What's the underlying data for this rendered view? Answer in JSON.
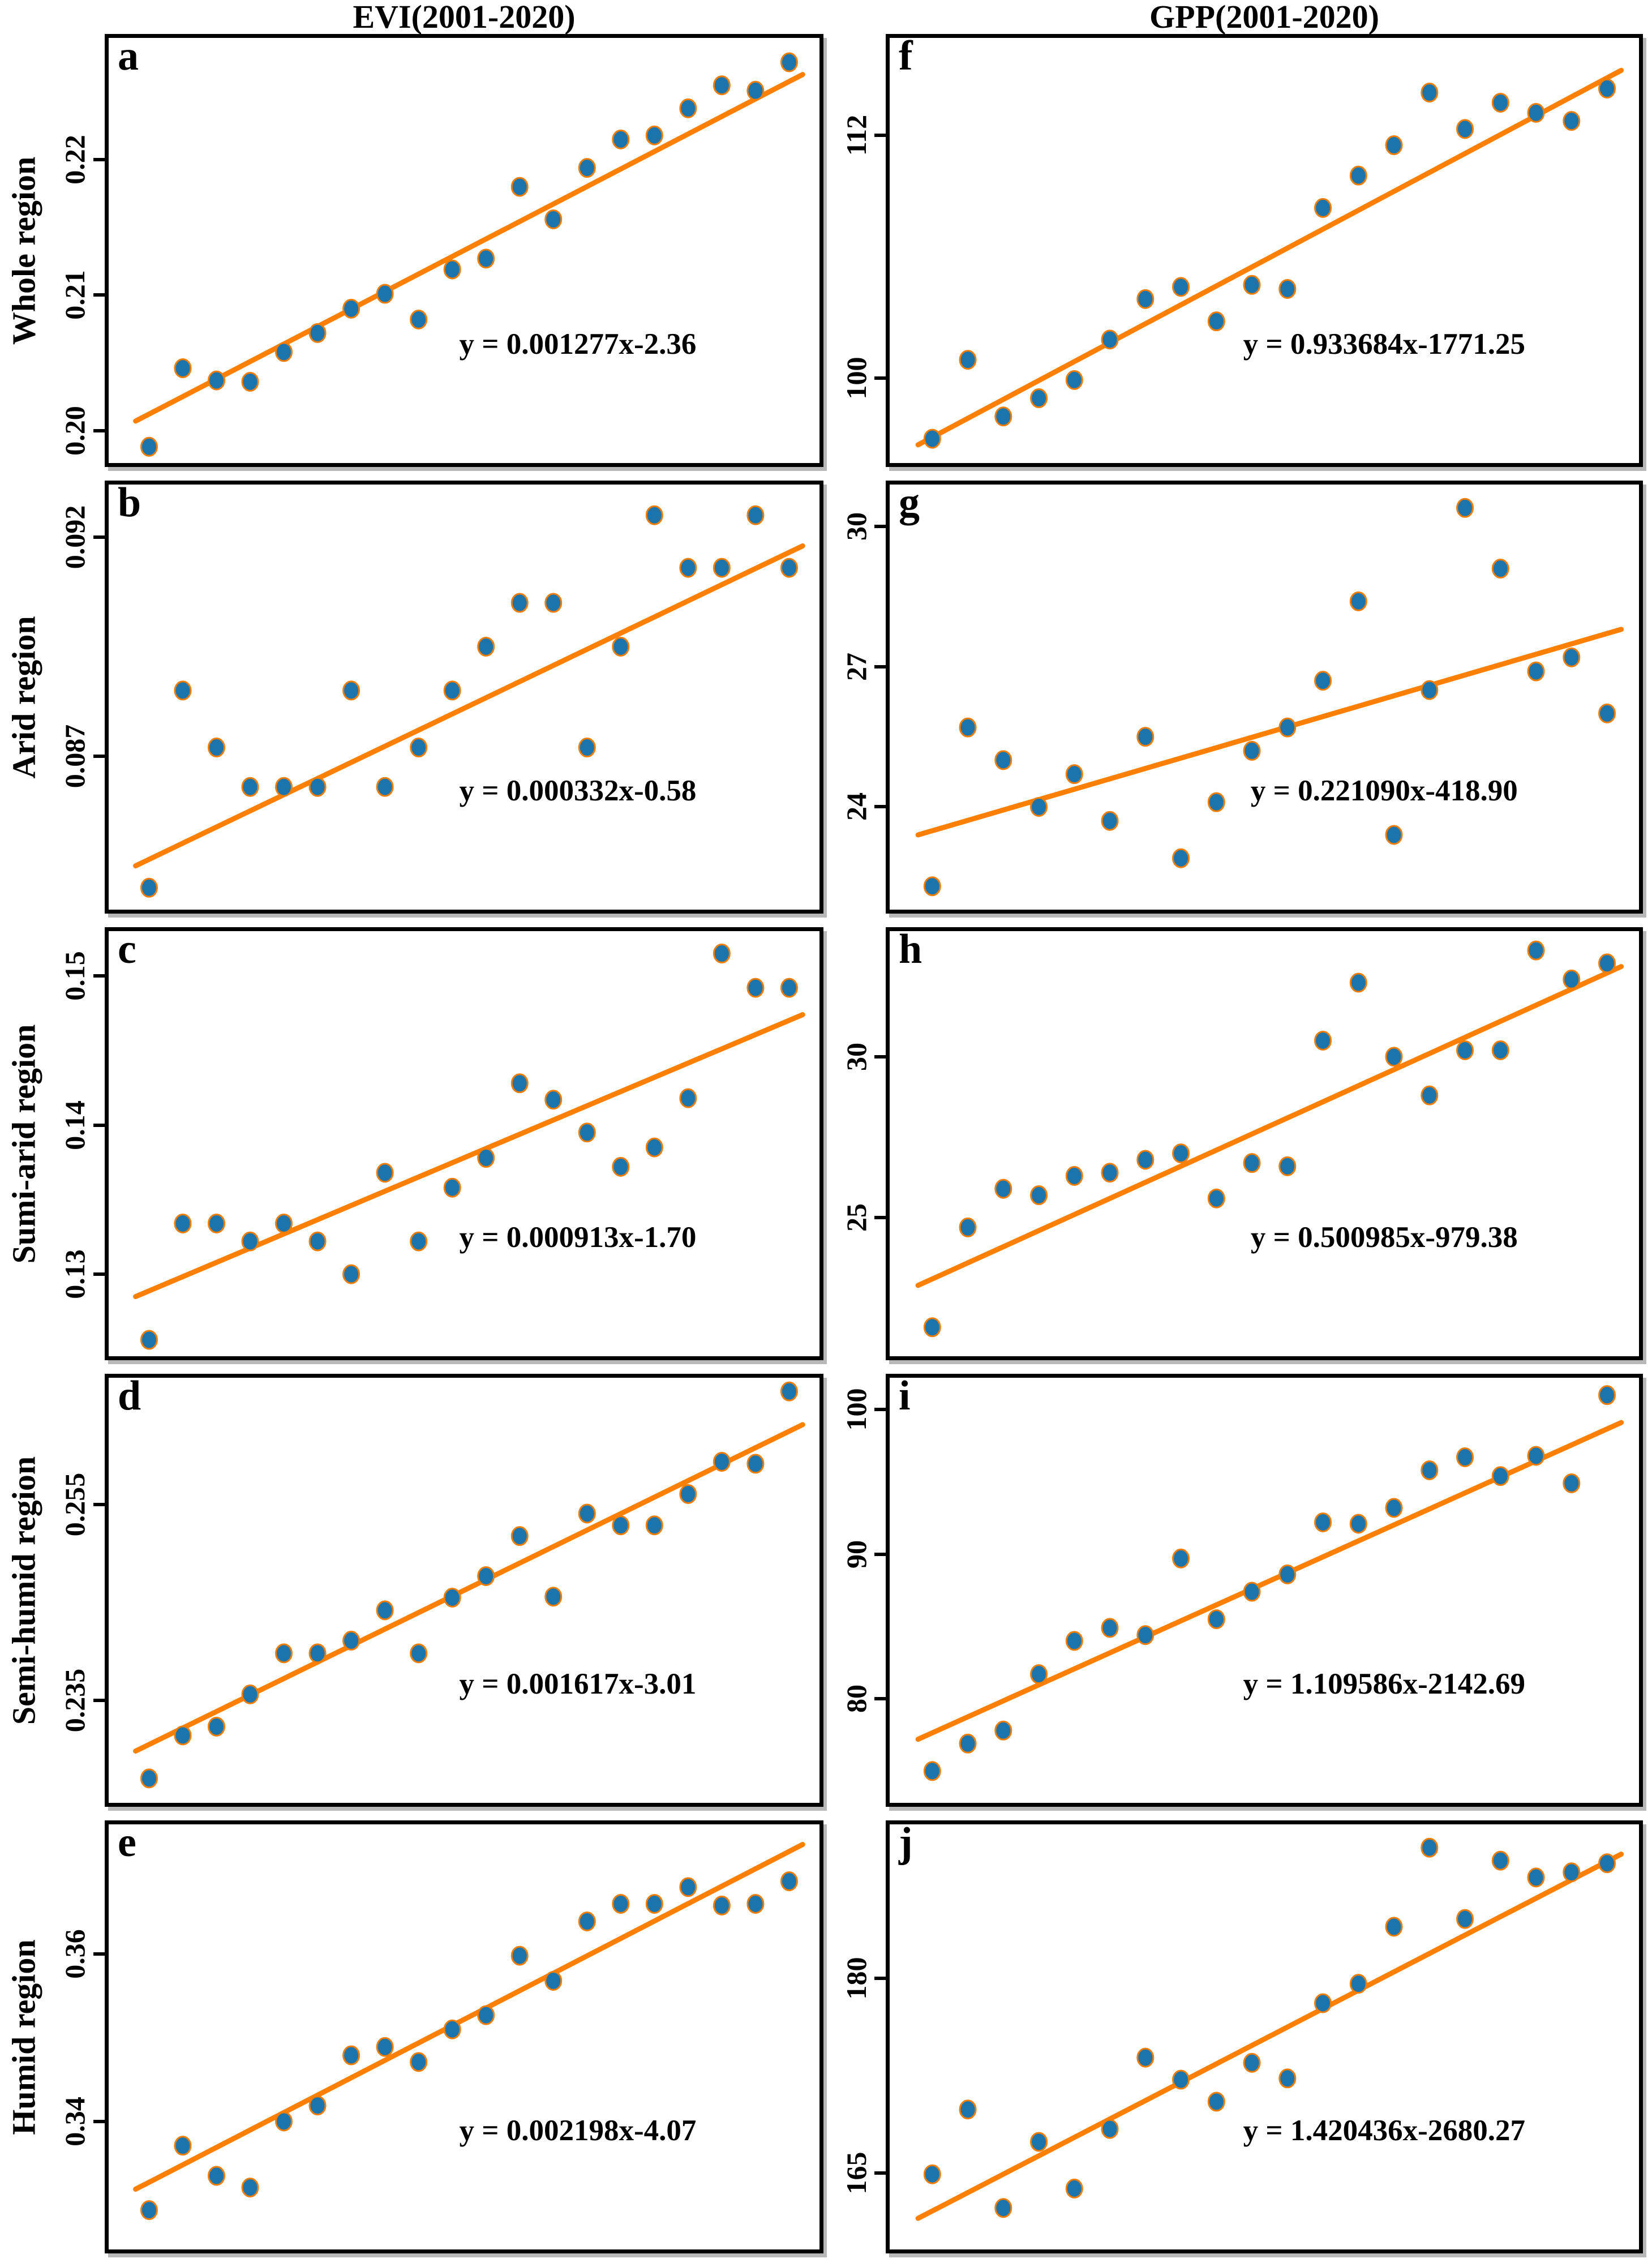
{
  "header": {
    "left_title": "EVI(2001-2020)",
    "right_title": "GPP(2001-2020)"
  },
  "colors": {
    "marker_fill": "#1b75ac",
    "marker_edge": "#f07d00",
    "trend_line": "#ff8000",
    "frame": "#000000",
    "text": "#000000",
    "background": "#ffffff"
  },
  "years": [
    2001,
    2002,
    2003,
    2004,
    2005,
    2006,
    2007,
    2008,
    2009,
    2010,
    2011,
    2012,
    2013,
    2014,
    2015,
    2016,
    2017,
    2018,
    2019,
    2020
  ],
  "chart_meta": {
    "xlim": [
      1999.8,
      2020.9
    ],
    "grid": false,
    "marker": "circle"
  },
  "chart_data": [
    {
      "id": "a",
      "letter": "a",
      "column": "EVI",
      "region": "Whole region",
      "type": "scatter",
      "equation": "y = 0.001277x-2.36",
      "ylim": [
        0.1976,
        0.229
      ],
      "yticks": [
        {
          "value": 0.22,
          "label": "0.22"
        },
        {
          "value": 0.21,
          "label": "0.21"
        },
        {
          "value": 0.2,
          "label": "0.20"
        }
      ],
      "values": [
        0.1988,
        0.2046,
        0.2037,
        0.2036,
        0.2058,
        0.2072,
        0.209,
        0.2101,
        0.2082,
        0.2119,
        0.2127,
        0.218,
        0.2156,
        0.2194,
        0.2215,
        0.2218,
        0.2238,
        0.2255,
        0.2251,
        0.2272
      ],
      "trend": {
        "x": [
          2000.6,
          2020.4
        ],
        "y": [
          0.2007,
          0.2263
        ]
      }
    },
    {
      "id": "b",
      "letter": "b",
      "column": "EVI",
      "region": "Arid region",
      "type": "scatter",
      "equation": "y = 0.000332x-0.58",
      "ylim": [
        0.0835,
        0.0932
      ],
      "yticks": [
        {
          "value": 0.092,
          "label": "0.092"
        },
        {
          "value": 0.087,
          "label": "0.087"
        }
      ],
      "values": [
        0.084,
        0.0885,
        0.0872,
        0.0863,
        0.0863,
        0.0863,
        0.0885,
        0.0863,
        0.0872,
        0.0885,
        0.0895,
        0.0905,
        0.0905,
        0.0872,
        0.0895,
        0.0925,
        0.0913,
        0.0913,
        0.0925,
        0.0913
      ],
      "trend": {
        "x": [
          2000.6,
          2020.4
        ],
        "y": [
          0.0845,
          0.0918
        ]
      }
    },
    {
      "id": "c",
      "letter": "c",
      "column": "EVI",
      "region": "Sumi-arid region",
      "type": "scatter",
      "equation": "y = 0.000913x-1.70",
      "ylim": [
        0.1245,
        0.153
      ],
      "yticks": [
        {
          "value": 0.15,
          "label": "0.15"
        },
        {
          "value": 0.14,
          "label": "0.14"
        },
        {
          "value": 0.13,
          "label": "0.13"
        }
      ],
      "values": [
        0.1256,
        0.1334,
        0.1334,
        0.1322,
        0.1334,
        0.1322,
        0.13,
        0.1368,
        0.1322,
        0.1358,
        0.1378,
        0.1428,
        0.1417,
        0.1395,
        0.1372,
        0.1385,
        0.1418,
        0.1515,
        0.1492,
        0.1492
      ],
      "trend": {
        "x": [
          2000.6,
          2020.4
        ],
        "y": [
          0.1285,
          0.1474
        ]
      }
    },
    {
      "id": "d",
      "letter": "d",
      "column": "EVI",
      "region": "Semi-humid region",
      "type": "scatter",
      "equation": "y = 0.001617x-3.01",
      "ylim": [
        0.2245,
        0.268
      ],
      "yticks": [
        {
          "value": 0.255,
          "label": "0.255"
        },
        {
          "value": 0.235,
          "label": "0.235"
        }
      ],
      "values": [
        0.227,
        0.2314,
        0.2323,
        0.2356,
        0.2398,
        0.2398,
        0.2411,
        0.2442,
        0.2398,
        0.2455,
        0.2477,
        0.2518,
        0.2456,
        0.2541,
        0.2529,
        0.2529,
        0.2561,
        0.2594,
        0.2592,
        0.2666
      ],
      "trend": {
        "x": [
          2000.6,
          2020.4
        ],
        "y": [
          0.2298,
          0.2632
        ]
      }
    },
    {
      "id": "e",
      "letter": "e",
      "column": "EVI",
      "region": "Humid region",
      "type": "scatter",
      "equation": "y = 0.002198x-4.07",
      "ylim": [
        0.3247,
        0.3755
      ],
      "yticks": [
        {
          "value": 0.36,
          "label": "0.36"
        },
        {
          "value": 0.34,
          "label": "0.34"
        }
      ],
      "values": [
        0.3294,
        0.3371,
        0.3335,
        0.3321,
        0.34,
        0.3419,
        0.3479,
        0.3489,
        0.3471,
        0.351,
        0.3527,
        0.3598,
        0.3568,
        0.3639,
        0.366,
        0.366,
        0.368,
        0.3658,
        0.366,
        0.3687
      ],
      "trend": {
        "x": [
          2000.6,
          2020.4
        ],
        "y": [
          0.3319,
          0.3731
        ]
      }
    },
    {
      "id": "f",
      "letter": "f",
      "column": "GPP",
      "region": "Whole region",
      "type": "scatter",
      "equation": "y = 0.933684x-1771.25",
      "ylim": [
        95.8,
        116.8
      ],
      "yticks": [
        {
          "value": 112,
          "label": "112"
        },
        {
          "value": 100,
          "label": "100"
        }
      ],
      "values": [
        97.0,
        100.9,
        98.1,
        99.0,
        99.9,
        101.9,
        103.9,
        104.5,
        102.8,
        104.6,
        104.4,
        108.4,
        110.0,
        111.5,
        114.1,
        112.3,
        113.6,
        113.1,
        112.7,
        114.3
      ],
      "trend": {
        "x": [
          2000.6,
          2020.4
        ],
        "y": [
          96.7,
          115.2
        ]
      }
    },
    {
      "id": "g",
      "letter": "g",
      "column": "GPP",
      "region": "Arid region",
      "type": "scatter",
      "equation": "y = 0.221090x-418.90",
      "ylim": [
        21.8,
        30.9
      ],
      "yticks": [
        {
          "value": 30,
          "label": "30"
        },
        {
          "value": 27,
          "label": "27"
        },
        {
          "value": 24,
          "label": "24"
        }
      ],
      "values": [
        22.3,
        25.7,
        25.0,
        24.0,
        24.7,
        23.7,
        25.5,
        22.9,
        24.1,
        25.2,
        25.7,
        26.7,
        28.4,
        23.4,
        26.5,
        30.4,
        29.1,
        26.9,
        27.2,
        26.0
      ],
      "trend": {
        "x": [
          2000.6,
          2020.4
        ],
        "y": [
          23.4,
          27.8
        ]
      }
    },
    {
      "id": "h",
      "letter": "h",
      "column": "GPP",
      "region": "Sumi-arid region",
      "type": "scatter",
      "equation": "y = 0.500985x-979.38",
      "ylim": [
        20.7,
        33.9
      ],
      "yticks": [
        {
          "value": 30,
          "label": "30"
        },
        {
          "value": 25,
          "label": "25"
        }
      ],
      "values": [
        21.6,
        24.7,
        25.9,
        25.7,
        26.3,
        26.4,
        26.8,
        27.0,
        25.6,
        26.7,
        26.6,
        30.5,
        32.3,
        30.0,
        28.8,
        30.2,
        30.2,
        33.3,
        32.4,
        32.9
      ],
      "trend": {
        "x": [
          2000.6,
          2020.4
        ],
        "y": [
          22.9,
          32.8
        ]
      }
    },
    {
      "id": "i",
      "letter": "i",
      "column": "GPP",
      "region": "Semi-humid region",
      "type": "scatter",
      "equation": "y = 1.109586x-2142.69",
      "ylim": [
        72.8,
        102.2
      ],
      "yticks": [
        {
          "value": 100,
          "label": "100"
        },
        {
          "value": 90,
          "label": "90"
        },
        {
          "value": 80,
          "label": "80"
        }
      ],
      "values": [
        75.0,
        76.9,
        77.8,
        81.7,
        84.0,
        84.9,
        84.4,
        89.7,
        85.5,
        87.4,
        88.6,
        92.2,
        92.1,
        93.2,
        95.8,
        96.7,
        95.4,
        96.8,
        94.9,
        101.0
      ],
      "trend": {
        "x": [
          2000.6,
          2020.4
        ],
        "y": [
          77.2,
          99.1
        ]
      }
    },
    {
      "id": "j",
      "letter": "j",
      "column": "GPP",
      "region": "Humid region",
      "type": "scatter",
      "equation": "y = 1.420436x-2680.27",
      "ylim": [
        159.1,
        191.9
      ],
      "yticks": [
        {
          "value": 180,
          "label": "180"
        },
        {
          "value": 165,
          "label": "165"
        }
      ],
      "values": [
        164.9,
        169.9,
        162.3,
        167.4,
        163.8,
        168.4,
        173.9,
        172.2,
        170.5,
        173.5,
        172.3,
        178.1,
        179.6,
        184.0,
        190.1,
        184.6,
        189.1,
        187.8,
        188.2,
        188.9
      ],
      "trend": {
        "x": [
          2000.6,
          2020.4
        ],
        "y": [
          161.5,
          189.6
        ]
      }
    }
  ]
}
